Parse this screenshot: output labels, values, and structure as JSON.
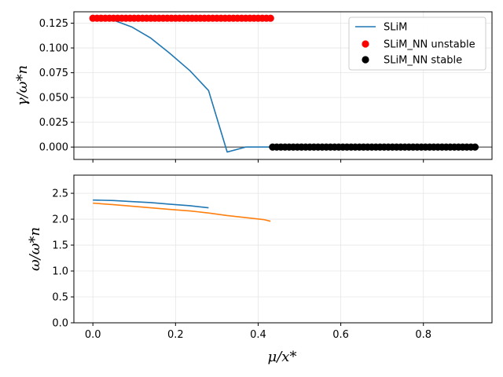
{
  "chart_data": [
    {
      "type": "line",
      "ylabel": "γ/ω*n",
      "xlim": [
        -0.046,
        0.966
      ],
      "ylim": [
        -0.0125,
        0.1365
      ],
      "xticks": [
        "0.0",
        "0.2",
        "0.4",
        "0.6",
        "0.8"
      ],
      "yticks": [
        "0.000",
        "0.025",
        "0.050",
        "0.075",
        "0.100",
        "0.125"
      ],
      "xticks_values": [
        0,
        0.2,
        0.4,
        0.6,
        0.8
      ],
      "yticks_values": [
        0,
        0.025,
        0.05,
        0.075,
        0.1,
        0.125
      ],
      "grid": true,
      "reference_line_y": 0,
      "legend_position": "top-right",
      "legend": [
        "SLiM",
        "SLiM_NN unstable",
        "SLiM_NN stable"
      ],
      "series": [
        {
          "name": "SLiM",
          "kind": "line",
          "color": "#1f77b4",
          "x": [
            0.0,
            0.05,
            0.095,
            0.14,
            0.185,
            0.235,
            0.28,
            0.325,
            0.37,
            0.415,
            0.46,
            0.51,
            0.52
          ],
          "y": [
            0.131,
            0.128,
            0.121,
            0.11,
            0.095,
            0.077,
            0.057,
            -0.005,
            0.0,
            0.0,
            0.0,
            0.0,
            0.0
          ]
        },
        {
          "name": "SLiM_NN unstable",
          "kind": "scatter",
          "color": "#ff0000",
          "x_start": 0.0,
          "x_end": 0.43,
          "x_step": 0.01,
          "y_constant": 0.13
        },
        {
          "name": "SLiM_NN stable",
          "kind": "scatter",
          "color": "#000000",
          "x_start": 0.435,
          "x_end": 0.92,
          "x_step": 0.01,
          "y_constant": 0.0
        }
      ]
    },
    {
      "type": "line",
      "xlabel": "μ/x*",
      "ylabel": "ω/ω*n",
      "xlim": [
        -0.046,
        0.966
      ],
      "ylim": [
        0.0,
        2.85
      ],
      "xticks": [
        "0.0",
        "0.2",
        "0.4",
        "0.6",
        "0.8"
      ],
      "yticks": [
        "0.0",
        "0.5",
        "1.0",
        "1.5",
        "2.0",
        "2.5"
      ],
      "xticks_values": [
        0,
        0.2,
        0.4,
        0.6,
        0.8
      ],
      "yticks_values": [
        0,
        0.5,
        1.0,
        1.5,
        2.0,
        2.5
      ],
      "grid": true,
      "series": [
        {
          "color": "#1f77b4",
          "x": [
            0.0,
            0.05,
            0.095,
            0.14,
            0.185,
            0.235,
            0.28
          ],
          "y": [
            2.37,
            2.36,
            2.34,
            2.32,
            2.29,
            2.26,
            2.22
          ]
        },
        {
          "color": "#ff7f0e",
          "x": [
            0.0,
            0.05,
            0.095,
            0.14,
            0.185,
            0.235,
            0.28,
            0.325,
            0.37,
            0.415,
            0.43
          ],
          "y": [
            2.31,
            2.28,
            2.25,
            2.22,
            2.19,
            2.16,
            2.12,
            2.07,
            2.03,
            1.99,
            1.96
          ]
        }
      ]
    }
  ]
}
